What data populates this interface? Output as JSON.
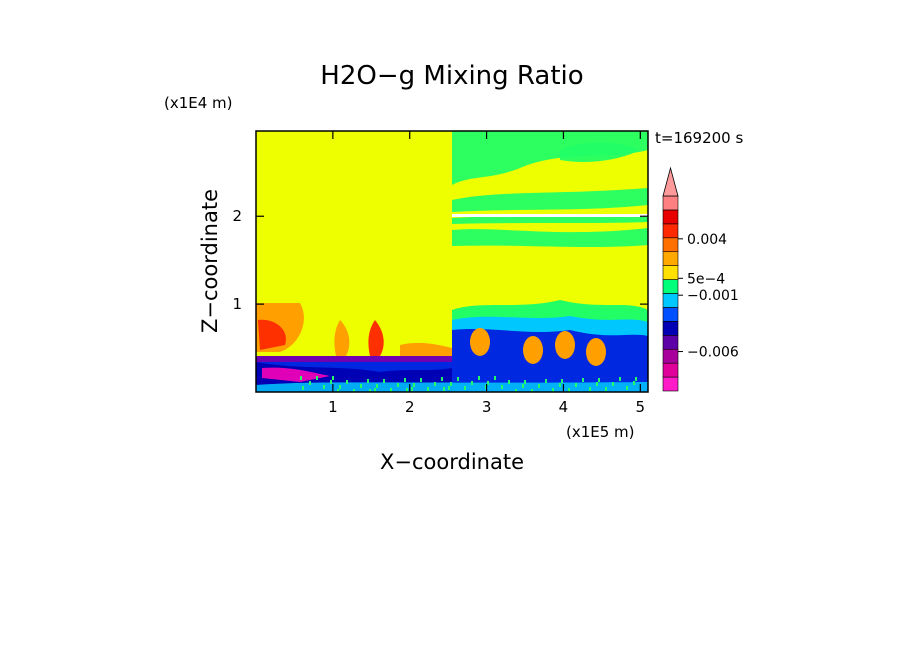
{
  "chart_data": {
    "type": "heatmap",
    "title": "H2O−g Mixing Ratio",
    "time_label": "t=169200 s",
    "xlabel": "X−coordinate",
    "ylabel": "Z−coordinate",
    "x_scale_label": "(x1E5 m)",
    "y_scale_label": "(x1E4 m)",
    "x_ticks": [
      "1",
      "2",
      "3",
      "4",
      "5"
    ],
    "y_ticks": [
      "1",
      "2"
    ],
    "x_tick_values": [
      1,
      2,
      3,
      4,
      5
    ],
    "y_tick_values": [
      1,
      2
    ],
    "xlim": [
      0,
      5.1
    ],
    "ylim": [
      0,
      2.97
    ],
    "colorbar": {
      "colors": [
        "#ff1cc8",
        "#e0009a",
        "#a8009a",
        "#5c00a8",
        "#0000b4",
        "#0050ff",
        "#00c8ff",
        "#00ff7a",
        "#ffe000",
        "#ffa800",
        "#ff7000",
        "#ff2a00",
        "#e80000",
        "#ff8080"
      ],
      "extend_color": "#ff9a9a",
      "labels": [
        "0.004",
        "5e−4",
        "−0.001",
        "−0.006"
      ],
      "label_values": [
        0.004,
        0.0005,
        -0.001,
        -0.006
      ]
    },
    "grid": false,
    "legend": "right"
  },
  "colors": {
    "background": "#eeff00",
    "blue": "#0028e0",
    "dark_blue": "#0000b4",
    "cyan": "#00c8ff",
    "green": "#22ff66",
    "orange": "#ffa000",
    "red": "#ff3000",
    "purple": "#7000b0",
    "magenta": "#e000b8"
  }
}
